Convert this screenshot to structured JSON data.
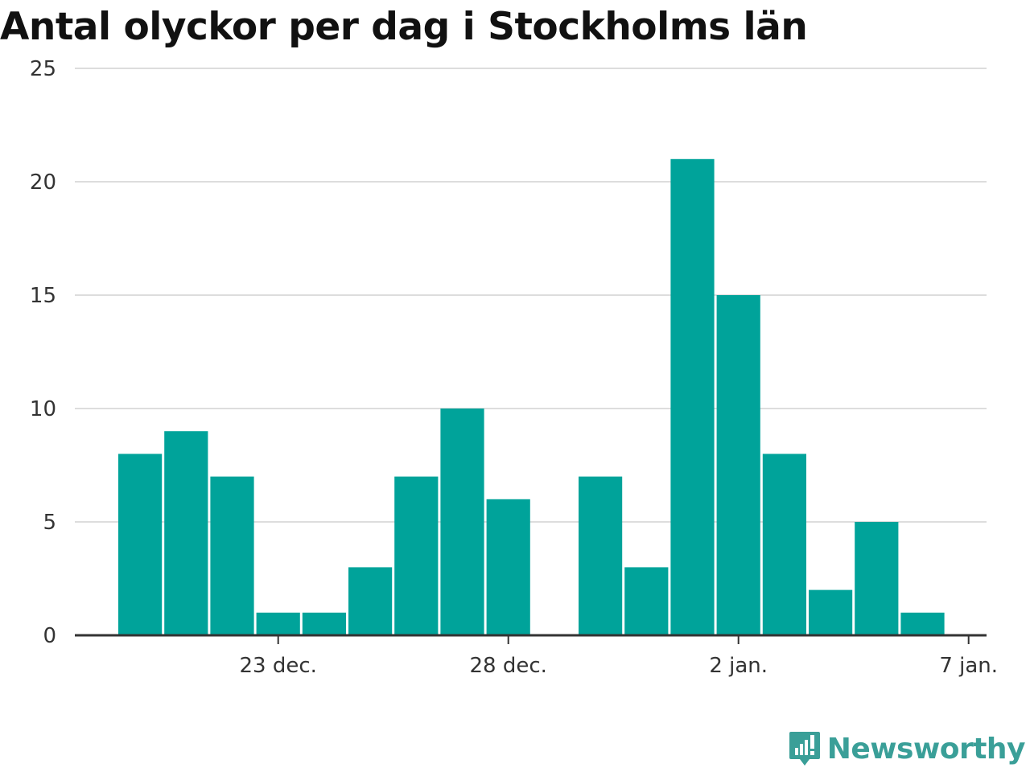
{
  "chart_data": {
    "type": "bar",
    "title": "Antal olyckor per dag i Stockholms län",
    "xlabel": "",
    "ylabel": "",
    "x_start": "2023-12-20",
    "x_end": "2024-01-07",
    "x_ticks": [
      {
        "date": "2023-12-23",
        "label": "23 dec."
      },
      {
        "date": "2023-12-28",
        "label": "28 dec."
      },
      {
        "date": "2024-01-02",
        "label": "2 jan."
      },
      {
        "date": "2024-01-07",
        "label": "7 jan."
      }
    ],
    "categories": [
      "2023-12-20",
      "2023-12-21",
      "2023-12-22",
      "2023-12-23",
      "2023-12-24",
      "2023-12-25",
      "2023-12-26",
      "2023-12-27",
      "2023-12-28",
      "2023-12-29",
      "2023-12-30",
      "2023-12-31",
      "2024-01-01",
      "2024-01-02",
      "2024-01-03",
      "2024-01-04",
      "2024-01-05",
      "2024-01-06"
    ],
    "values": [
      8,
      9,
      7,
      1,
      1,
      3,
      7,
      10,
      6,
      0,
      7,
      3,
      21,
      15,
      8,
      2,
      5,
      1
    ],
    "ylim": [
      0,
      25
    ],
    "yticks": [
      0,
      5,
      10,
      15,
      20,
      25
    ],
    "grid": true,
    "bar_color": "#00a39a"
  },
  "brand": {
    "name": "Newsworthy",
    "icon": "newsworthy-logo-icon",
    "color": "#3a9f98"
  }
}
